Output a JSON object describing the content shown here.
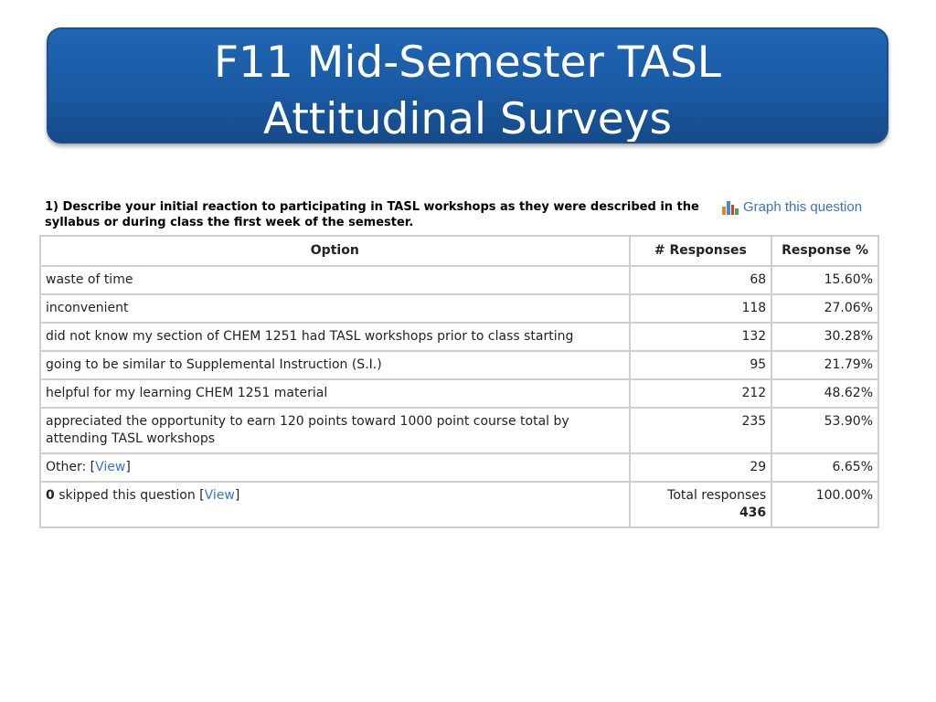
{
  "slide": {
    "title_line1": "F11 Mid-Semester TASL",
    "title_line2": "Attitudinal Surveys"
  },
  "question": {
    "number": "1)",
    "text": "Describe your initial reaction to participating in TASL workshops as they were described in the syllabus or during class the first week of the semester.",
    "graph_link_label": "Graph this question",
    "graph_icon": "bar-chart-icon"
  },
  "table": {
    "headers": {
      "option": "Option",
      "responses": "# Responses",
      "percent": "Response %"
    },
    "rows": [
      {
        "option": "waste of time",
        "responses": "68",
        "percent": "15.60%"
      },
      {
        "option": "inconvenient",
        "responses": "118",
        "percent": "27.06%"
      },
      {
        "option": "did not know my section of CHEM 1251 had TASL workshops prior to class starting",
        "responses": "132",
        "percent": "30.28%"
      },
      {
        "option": "going to be similar to Supplemental Instruction (S.I.)",
        "responses": "95",
        "percent": "21.79%"
      },
      {
        "option": "helpful for my learning CHEM 1251 material",
        "responses": "212",
        "percent": "48.62%"
      },
      {
        "option": "appreciated the opportunity to earn 120 points toward 1000 point course total by attending TASL workshops",
        "responses": "235",
        "percent": "53.90%"
      },
      {
        "option": "Other: ",
        "link": "View",
        "responses": "29",
        "percent": "6.65%"
      }
    ],
    "footer": {
      "skipped_count": "0",
      "skipped_text": " skipped this question ",
      "skipped_link": "View",
      "total_label": "Total responses",
      "total_value": "436",
      "total_percent": "100.00%"
    }
  },
  "colors": {
    "title_bg": "#1a5aa3",
    "link": "#3b6fd0",
    "border": "#cfcfcf"
  }
}
